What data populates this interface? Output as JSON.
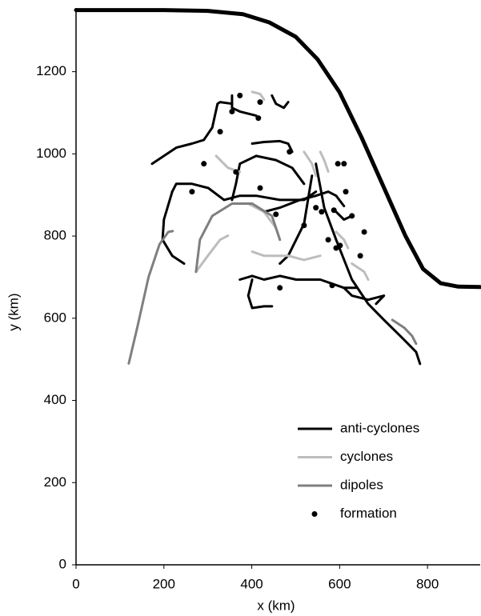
{
  "chart_data": {
    "type": "trajectory",
    "x_label": "x (km)",
    "y_label": "y (km)",
    "xlim": [
      0,
      920
    ],
    "ylim": [
      0,
      1355
    ],
    "xticks": [
      0,
      200,
      400,
      600,
      800
    ],
    "yticks": [
      0,
      200,
      400,
      600,
      800,
      1000,
      1200
    ],
    "legend": "lower right",
    "boundary": {
      "color": "#000000",
      "x": [
        0,
        200,
        300,
        380,
        440,
        500,
        550,
        600,
        650,
        700,
        750,
        790,
        830,
        870,
        920
      ],
      "y": [
        1350,
        1350,
        1348,
        1340,
        1320,
        1285,
        1230,
        1150,
        1040,
        920,
        800,
        720,
        685,
        677,
        676
      ]
    },
    "series": [
      {
        "name": "anti-cyclones",
        "color": "#000000",
        "marker": "line",
        "tracks": [
          {
            "x": [
              173,
              200,
              228,
              264,
              291,
              310,
              322,
              328,
              355
            ],
            "y": [
              976,
              995,
              1015,
              1025,
              1034,
              1064,
              1122,
              1126,
              1122
            ]
          },
          {
            "x": [
              219,
              228,
              264,
              301,
              337,
              373,
              410,
              464,
              519,
              546
            ],
            "y": [
              908,
              927,
              927,
              917,
              888,
              898,
              898,
              888,
              888,
              908
            ]
          },
          {
            "x": [
              219,
              200,
              197,
              219,
              246
            ],
            "y": [
              908,
              840,
              791,
              752,
              733
            ]
          },
          {
            "x": [
              401,
              428,
              464,
              483,
              492
            ],
            "y": [
              1025,
              1029,
              1031,
              1025,
              1005
            ]
          },
          {
            "x": [
              373,
              401,
              428,
              464,
              501,
              556,
              610,
              638
            ],
            "y": [
              694,
              703,
              694,
              703,
              694,
              694,
              674,
              674
            ]
          },
          {
            "x": [
              401,
              392,
              401,
              428,
              446
            ],
            "y": [
              694,
              655,
              625,
              629,
              629
            ]
          },
          {
            "x": [
              537,
              528,
              519,
              501,
              483,
              464
            ],
            "y": [
              947,
              888,
              830,
              791,
              752,
              733
            ]
          },
          {
            "x": [
              546,
              565,
              592,
              628,
              665,
              701,
              738,
              774,
              783
            ],
            "y": [
              976,
              869,
              791,
              694,
              635,
              596,
              557,
              518,
              489
            ]
          },
          {
            "x": [
              355,
              364,
              373,
              410,
              455,
              492,
              519
            ],
            "y": [
              888,
              927,
              976,
              995,
              985,
              966,
              927
            ]
          },
          {
            "x": [
              592,
              610,
              628
            ],
            "y": [
              859,
              840,
              849
            ]
          },
          {
            "x": [
              446,
              455,
              473,
              483
            ],
            "y": [
              1142,
              1122,
              1112,
              1126
            ]
          },
          {
            "x": [
              355,
              355,
              373,
              410
            ],
            "y": [
              1142,
              1112,
              1103,
              1093
            ]
          },
          {
            "x": [
              546,
              574,
              592,
              610
            ],
            "y": [
              898,
              908,
              898,
              873
            ]
          },
          {
            "x": [
              428,
              464,
              510,
              546
            ],
            "y": [
              859,
              869,
              888,
              898
            ]
          },
          {
            "x": [
              610,
              628,
              665,
              701,
              683
            ],
            "y": [
              674,
              655,
              645,
              655,
              635
            ]
          }
        ]
      },
      {
        "name": "cyclones",
        "color": "#bdbdbd",
        "marker": "line",
        "tracks": [
          {
            "x": [
              273,
              300,
              328,
              346
            ],
            "y": [
              713,
              752,
              791,
              801
            ]
          },
          {
            "x": [
              319,
              346,
              373
            ],
            "y": [
              995,
              966,
              956
            ]
          },
          {
            "x": [
              401,
              419,
              428
            ],
            "y": [
              1151,
              1146,
              1132
            ]
          },
          {
            "x": [
              519,
              537,
              546
            ],
            "y": [
              1005,
              976,
              947
            ]
          },
          {
            "x": [
              401,
              428,
              483,
              519,
              556
            ],
            "y": [
              762,
              752,
              752,
              742,
              752
            ]
          },
          {
            "x": [
              392,
              428,
              455,
              464
            ],
            "y": [
              879,
              859,
              820,
              791
            ]
          },
          {
            "x": [
              556,
              565,
              574
            ],
            "y": [
              1005,
              985,
              957
            ]
          },
          {
            "x": [
              592,
              610,
              619
            ],
            "y": [
              810,
              791,
              771
            ]
          },
          {
            "x": [
              628,
              656,
              665
            ],
            "y": [
              733,
              713,
              694
            ]
          }
        ]
      },
      {
        "name": "dipoles",
        "color": "#7f7f7f",
        "marker": "line",
        "tracks": [
          {
            "x": [
              120,
              140,
              165,
              190,
              210,
              220
            ],
            "y": [
              490,
              580,
              700,
              780,
              810,
              812
            ]
          },
          {
            "x": [
              273,
              282,
              310,
              355,
              401,
              446,
              464
            ],
            "y": [
              713,
              791,
              849,
              879,
              879,
              849,
              791
            ]
          },
          {
            "x": [
              720,
              747,
              765,
              774
            ],
            "y": [
              596,
              577,
              557,
              538
            ]
          }
        ]
      },
      {
        "name": "formation",
        "color": "#000000",
        "marker": "dot",
        "x": [
          373,
          419,
          415,
          355,
          291,
          264,
          364,
          486,
          596,
          610,
          419,
          455,
          519,
          546,
          559,
          587,
          614,
          628,
          592,
          601,
          574,
          656,
          647,
          583,
          464,
          328
        ],
        "y": [
          1142,
          1126,
          1087,
          1103,
          976,
          908,
          956,
          1005,
          976,
          976,
          917,
          853,
          826,
          869,
          859,
          863,
          908,
          849,
          771,
          777,
          791,
          810,
          752,
          680,
          674,
          1054
        ]
      }
    ]
  }
}
